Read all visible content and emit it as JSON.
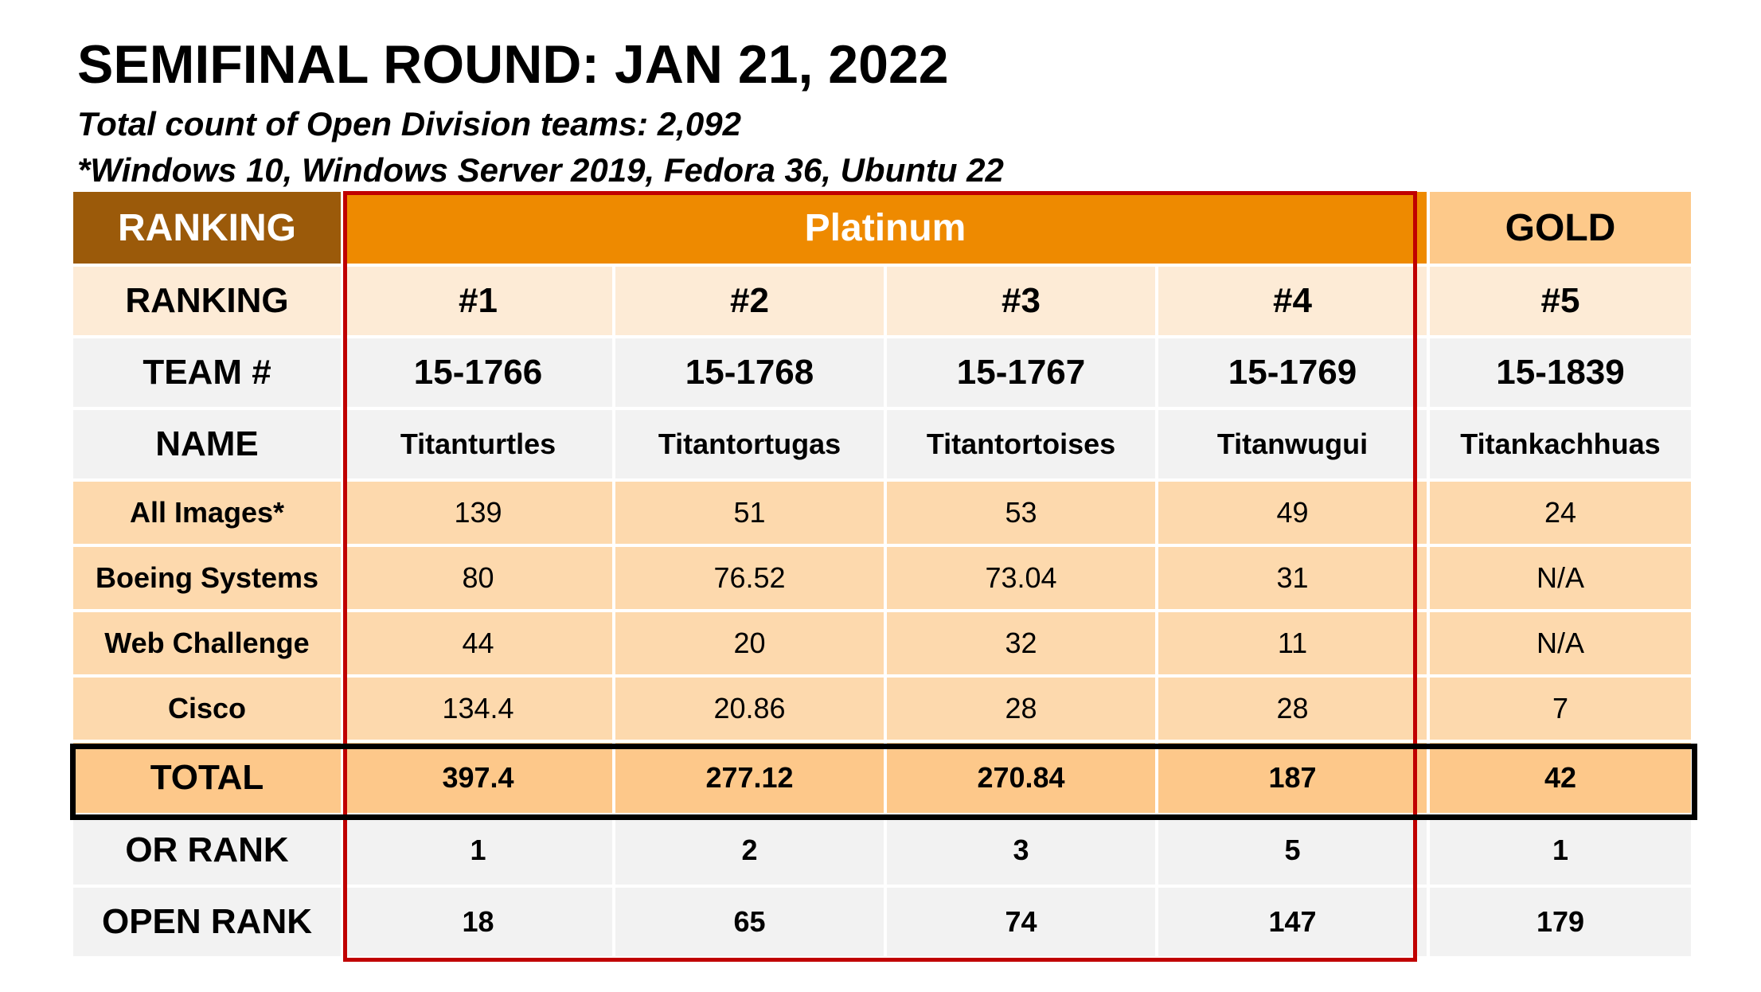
{
  "title": "SEMIFINAL ROUND: JAN 21, 2022",
  "subtitle_1": "Total count of Open Division teams: 2,092",
  "subtitle_2": "*Windows 10, Windows Server 2019, Fedora 36, Ubuntu 22",
  "colors": {
    "ranking_header": "#9b5a0a",
    "platinum_header": "#ee8a00",
    "gold_header": "#fdc98a",
    "platinum_outline": "#c00000",
    "total_outline": "#000000"
  },
  "header": {
    "ranking": "RANKING",
    "platinum": "Platinum",
    "gold": "GOLD"
  },
  "rows": {
    "ranking": {
      "label": "RANKING",
      "values": [
        "#1",
        "#2",
        "#3",
        "#4",
        "#5"
      ]
    },
    "team": {
      "label": "TEAM #",
      "values": [
        "15-1766",
        "15-1768",
        "15-1767",
        "15-1769",
        "15-1839"
      ]
    },
    "name": {
      "label": "NAME",
      "values": [
        "Titanturtles",
        "Titantortugas",
        "Titantortoises",
        "Titanwugui",
        "Titankachhuas"
      ]
    },
    "all_images": {
      "label": "All Images*",
      "values": [
        "139",
        "51",
        "53",
        "49",
        "24"
      ]
    },
    "boeing": {
      "label": "Boeing Systems",
      "values": [
        "80",
        "76.52",
        "73.04",
        "31",
        "N/A"
      ]
    },
    "web": {
      "label": "Web Challenge",
      "values": [
        "44",
        "20",
        "32",
        "11",
        "N/A"
      ]
    },
    "cisco": {
      "label": "Cisco",
      "values": [
        "134.4",
        "20.86",
        "28",
        "28",
        "7"
      ]
    },
    "total": {
      "label": "TOTAL",
      "values": [
        "397.4",
        "277.12",
        "270.84",
        "187",
        "42"
      ]
    },
    "or_rank": {
      "label": "OR RANK",
      "values": [
        "1",
        "2",
        "3",
        "5",
        "1"
      ]
    },
    "open_rank": {
      "label": "OPEN RANK",
      "values": [
        "18",
        "65",
        "74",
        "147",
        "179"
      ]
    }
  }
}
